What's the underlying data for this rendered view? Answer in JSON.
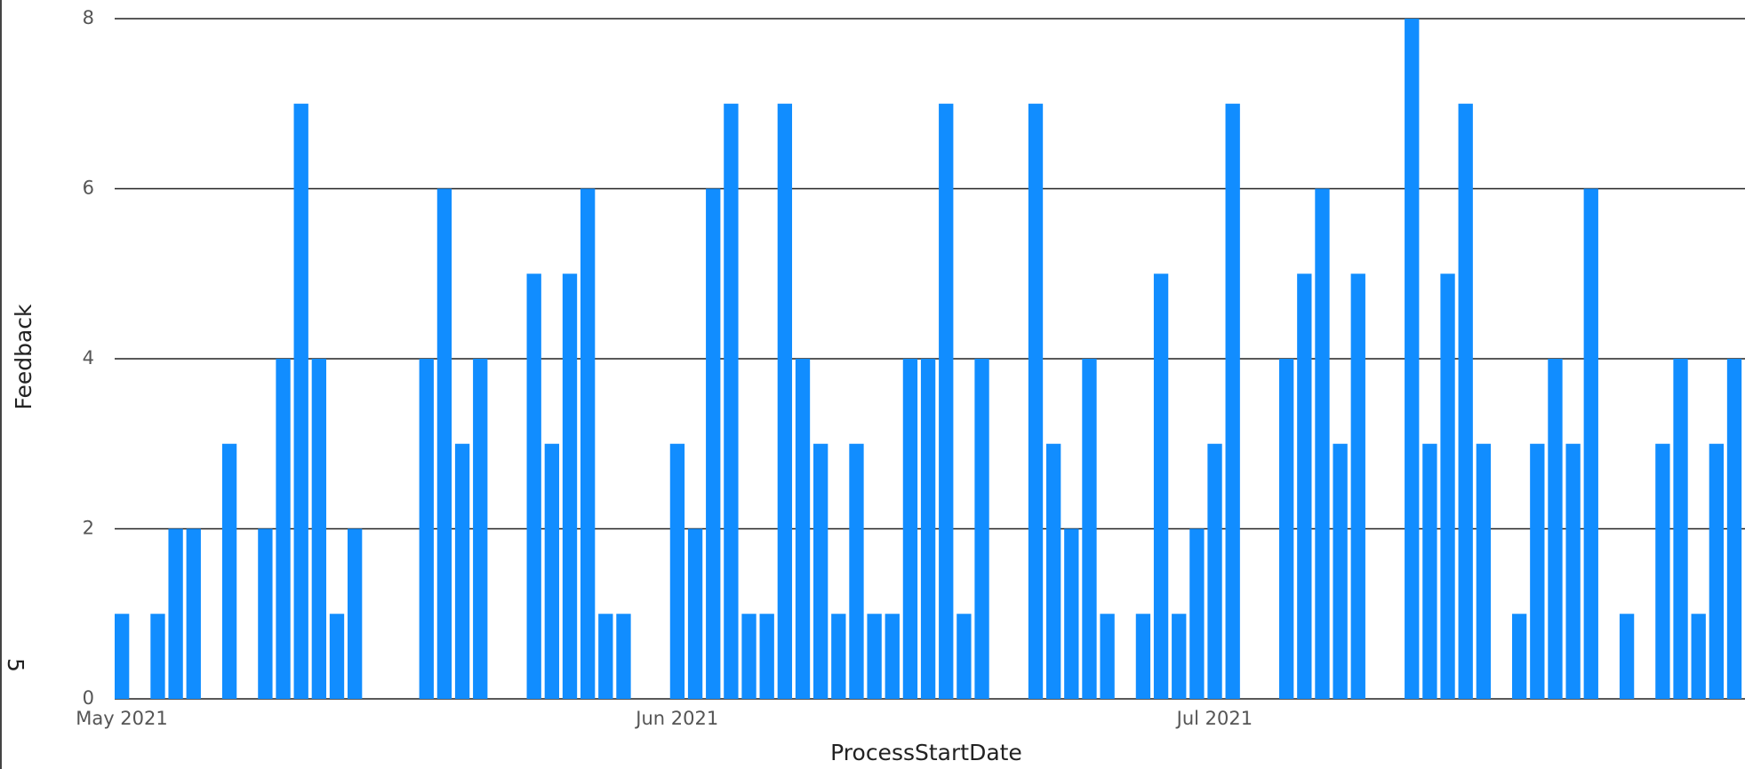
{
  "chart_data": {
    "type": "bar",
    "x_label": "ProcessStartDate",
    "y_label": "Feedback",
    "side_label": "5",
    "color": "#118dff",
    "grid": true,
    "ylim": [
      0,
      8
    ],
    "yticks": [
      0,
      2,
      4,
      6,
      8
    ],
    "categories": [
      "May 2021",
      null,
      null,
      null,
      null,
      null,
      null,
      null,
      null,
      null,
      null,
      null,
      null,
      null,
      null,
      null,
      null,
      null,
      null,
      null,
      null,
      null,
      null,
      null,
      null,
      null,
      null,
      null,
      null,
      null,
      null,
      "Jun 2021",
      null,
      null,
      null,
      null,
      null,
      null,
      null,
      null,
      null,
      null,
      null,
      null,
      null,
      null,
      null,
      null,
      null,
      null,
      null,
      null,
      null,
      null,
      null,
      null,
      null,
      null,
      null,
      null,
      null,
      "Jul 2021",
      null,
      null,
      null,
      null,
      null,
      null,
      null,
      null,
      null,
      null,
      null,
      null,
      null,
      null,
      null,
      null,
      null,
      null,
      null,
      null,
      null,
      null,
      null,
      null,
      null,
      null,
      null,
      null,
      null
    ],
    "values": [
      1,
      null,
      1,
      2,
      2,
      null,
      3,
      null,
      2,
      4,
      7,
      4,
      1,
      2,
      null,
      null,
      null,
      4,
      6,
      3,
      4,
      null,
      null,
      5,
      3,
      5,
      6,
      1,
      1,
      null,
      null,
      3,
      2,
      6,
      7,
      1,
      1,
      7,
      4,
      3,
      1,
      3,
      1,
      1,
      4,
      4,
      7,
      1,
      4,
      null,
      null,
      7,
      3,
      2,
      4,
      1,
      null,
      1,
      5,
      1,
      2,
      3,
      7,
      null,
      null,
      4,
      5,
      6,
      3,
      5,
      null,
      null,
      8,
      3,
      5,
      7,
      3,
      null,
      1,
      3,
      4,
      3,
      6,
      null,
      1,
      null,
      3,
      4,
      1,
      3,
      4
    ]
  }
}
